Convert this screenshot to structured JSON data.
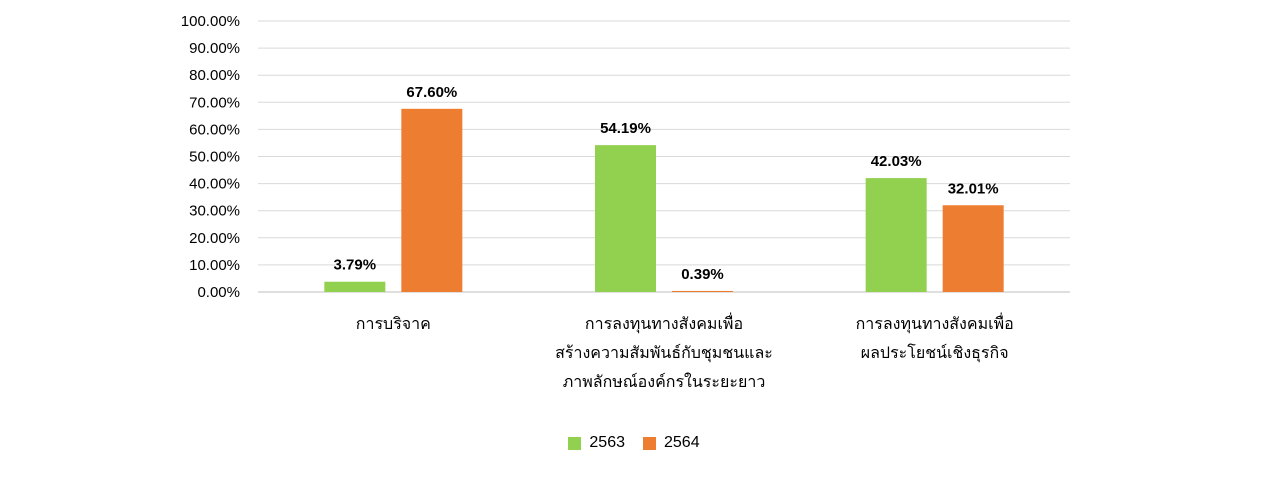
{
  "chart_data": {
    "type": "bar",
    "categories": [
      [
        "การบริจาค"
      ],
      [
        "การลงทุนทางสังคมเพื่อ",
        "สร้างความสัมพันธ์กับชุมชนและ",
        "ภาพลักษณ์องค์กรในระยะยาว"
      ],
      [
        "การลงทุนทางสังคมเพื่อ",
        "ผลประโยชน์เชิงธุรกิจ"
      ]
    ],
    "series": [
      {
        "name": "2563",
        "color": "#92D050",
        "values": [
          3.79,
          54.19,
          42.03
        ],
        "labels": [
          "3.79%",
          "54.19%",
          "42.03%"
        ]
      },
      {
        "name": "2564",
        "color": "#ED7D31",
        "values": [
          67.6,
          0.39,
          32.01
        ],
        "labels": [
          "67.60%",
          "0.39%",
          "32.01%"
        ]
      }
    ],
    "yticks": [
      "0.00%",
      "10.00%",
      "20.00%",
      "30.00%",
      "40.00%",
      "50.00%",
      "60.00%",
      "70.00%",
      "80.00%",
      "90.00%",
      "100.00%"
    ],
    "ylim": [
      0,
      100
    ],
    "grid": true,
    "legend_position": "bottom"
  }
}
